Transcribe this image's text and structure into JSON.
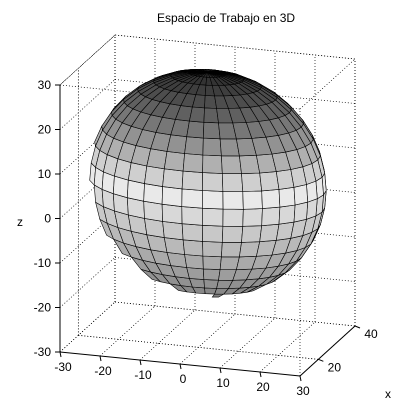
{
  "chart_data": {
    "type": "surface3d",
    "title": "Espacio de Trabajo en 3D",
    "xlabel": "x",
    "ylabel": "",
    "zlabel": "z",
    "xlim": [
      -30,
      30
    ],
    "ylim": [
      10,
      40
    ],
    "zlim": [
      -30,
      30
    ],
    "x_ticks": [
      -30,
      -20,
      -10,
      0,
      10,
      20,
      30
    ],
    "y_ticks": [
      20,
      40
    ],
    "z_ticks": [
      -30,
      -20,
      -10,
      0,
      10,
      20,
      30
    ],
    "grid": true,
    "colormap": "gray",
    "surface": {
      "shape": "ellipsoid",
      "x_range": [
        -29,
        29
      ],
      "y_range": [
        11,
        39
      ],
      "z_range": [
        -20,
        30
      ],
      "rings": 20,
      "meridians": 36
    }
  }
}
